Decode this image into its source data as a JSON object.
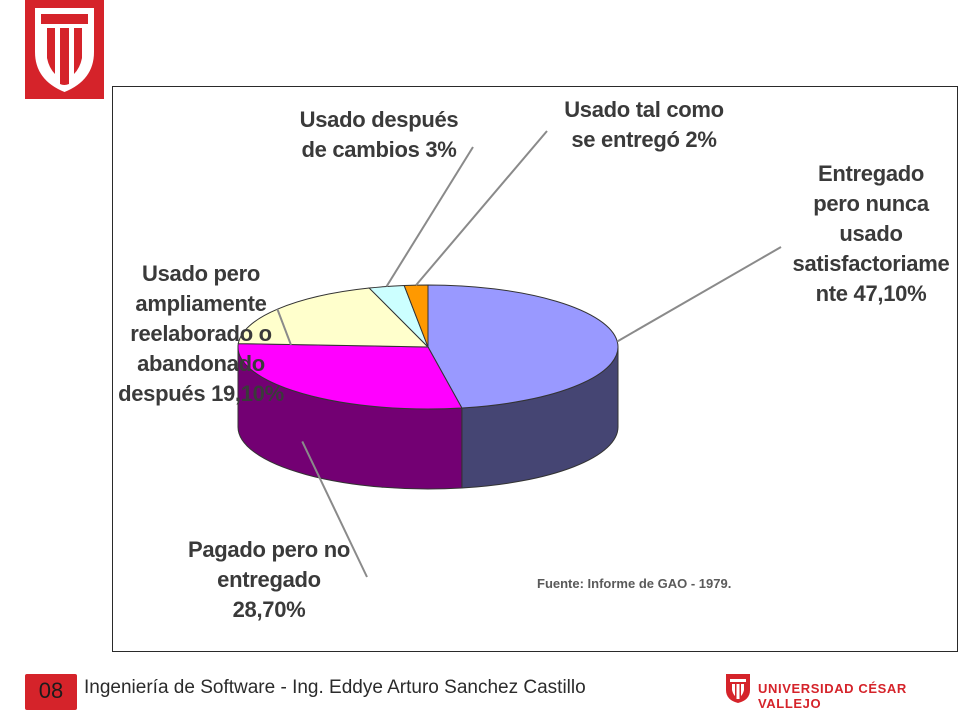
{
  "branding": {
    "logo_color": "#d5232a",
    "university_name": "UNIVERSIDAD CÉSAR VALLEJO"
  },
  "footer": {
    "slide_number": "08",
    "course_text": "Ingeniería de Software - Ing. Eddye Arturo Sanchez Castillo"
  },
  "chart_data": {
    "type": "pie",
    "style": "3d",
    "source": "Fuente: Informe de GAO - 1979.",
    "slices": [
      {
        "label": "Entregado\npero nunca\nusado\nsatisfactoriame\nnte 47,10%",
        "value": 47.1,
        "color": "#9999ff"
      },
      {
        "label": "Pagado pero no\nentregado\n28,70%",
        "value": 28.7,
        "color": "#ff00ff"
      },
      {
        "label": "Usado  pero\nampliamente\nreelaborado o\nabandonado\ndespués 19,10%",
        "value": 19.1,
        "color": "#ffffcc"
      },
      {
        "label": "Usado después\nde cambios 3%",
        "value": 3,
        "color": "#ccffff"
      },
      {
        "label": "Usado tal como\nse entregó 2%",
        "value": 2,
        "color": "#ff9900"
      }
    ]
  }
}
